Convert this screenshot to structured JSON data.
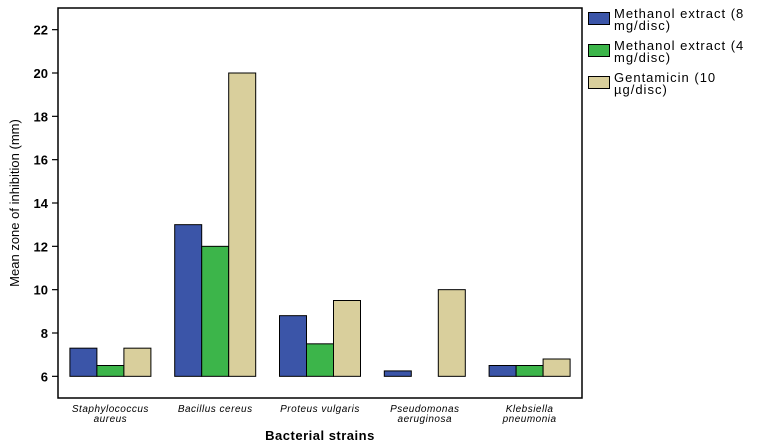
{
  "chart_data": {
    "type": "bar",
    "categories": [
      [
        "Staphylococcus",
        "aureus"
      ],
      [
        "Bacillus cereus"
      ],
      [
        "Proteus vulgaris"
      ],
      [
        "Pseudomonas",
        "aeruginosa"
      ],
      [
        "Klebsiella",
        "pneumonia"
      ]
    ],
    "series": [
      {
        "name": "Methanol extract (8 mg/disc)",
        "color": "#3b55a8",
        "values": [
          7.3,
          13.0,
          8.8,
          6.25,
          6.5
        ]
      },
      {
        "name": "Methanol extract (4 mg/disc)",
        "color": "#3cb54a",
        "values": [
          6.5,
          12.0,
          7.5,
          6.0,
          6.5
        ]
      },
      {
        "name": "Gentamicin (10 µg/disc)",
        "color": "#d9cf9c",
        "values": [
          7.3,
          20.0,
          9.5,
          10.0,
          6.8
        ]
      }
    ],
    "xlabel": "Bacterial strains",
    "ylabel": "Mean zone of inhibition (mm)",
    "ylim": [
      5,
      23
    ],
    "baseline": 6,
    "yticks": [
      6,
      8,
      10,
      12,
      14,
      16,
      18,
      20,
      22
    ],
    "grid": false,
    "legend_position": "right"
  }
}
